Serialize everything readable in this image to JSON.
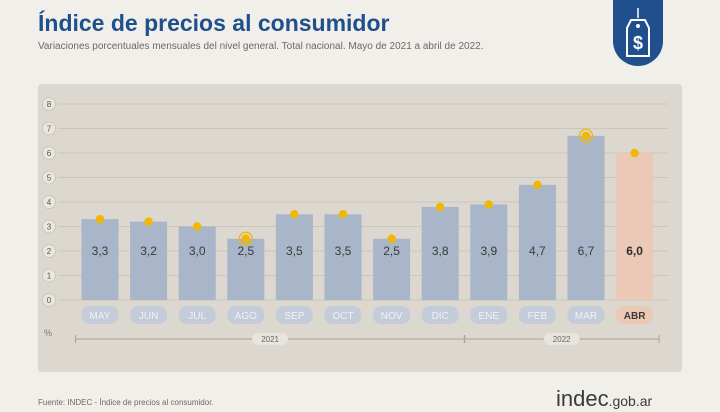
{
  "header": {
    "title": "Índice de precios al consumidor",
    "subtitle": "Variaciones porcentuales mensuales del nivel general. Total nacional. Mayo de 2021 a abril de 2022."
  },
  "footer": {
    "source": "Fuente: INDEC - Índice de precios al consumidor.",
    "logo_main": "indec",
    "logo_sub": ".gob.ar"
  },
  "badge": {
    "icon": "price-tag-dollar-icon"
  },
  "colors": {
    "bar": "#a9b5c9",
    "bar_highlight": "#ecc9b7",
    "dot": "#f2b705",
    "title": "#1f4f8c",
    "panel": "#dcd8cf"
  },
  "chart_data": {
    "type": "bar",
    "categories": [
      "MAY",
      "JUN",
      "JUL",
      "AGO",
      "SEP",
      "OCT",
      "NOV",
      "DIC",
      "ENE",
      "FEB",
      "MAR",
      "ABR"
    ],
    "values": [
      3.3,
      3.2,
      3.0,
      2.5,
      3.5,
      3.5,
      2.5,
      3.8,
      3.9,
      4.7,
      6.7,
      6.0
    ],
    "value_labels": [
      "3,3",
      "3,2",
      "3,0",
      "2,5",
      "3,5",
      "3,5",
      "2,5",
      "3,8",
      "3,9",
      "4,7",
      "6,7",
      "6,0"
    ],
    "highlight_index": 11,
    "ringed_indices": [
      3,
      10
    ],
    "ylim": [
      0,
      8
    ],
    "yticks": [
      "0",
      "1",
      "2",
      "3",
      "4",
      "5",
      "6",
      "7",
      "8"
    ],
    "ylabel": "%",
    "year_groups": [
      {
        "label": "2021",
        "start": 0,
        "end": 7
      },
      {
        "label": "2022",
        "start": 8,
        "end": 11
      }
    ],
    "grid": true
  }
}
